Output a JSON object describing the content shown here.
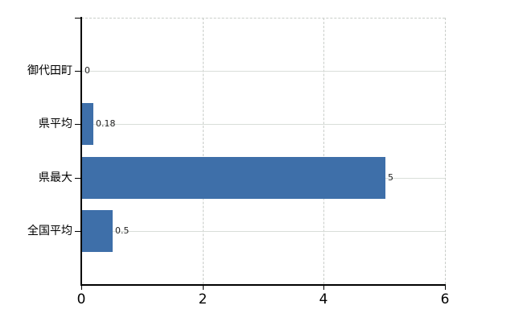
{
  "chart_data": {
    "type": "bar",
    "orientation": "horizontal",
    "title": "",
    "xlabel": "",
    "ylabel": "",
    "categories": [
      "御代田町",
      "県平均",
      "県最大",
      "全国平均"
    ],
    "values": [
      0,
      0.18,
      5,
      0.5
    ],
    "value_labels": [
      "0",
      "0.18",
      "5",
      "0.5"
    ],
    "x_ticks": [
      0,
      2,
      4,
      6
    ],
    "xlim": [
      0,
      6
    ],
    "grid": {
      "vertical_gridlines": "dashed",
      "top_border": "dashed",
      "category_lines": "solid"
    },
    "colors": {
      "bar": "#3e6fa9",
      "axis": "#000000",
      "dashed_gridline": "#c9cdc9",
      "category_gridline": "#d9ded9",
      "tick_label_text": "#000000",
      "value_label_text": "#222222",
      "background": "#ffffff"
    },
    "legend": null
  }
}
